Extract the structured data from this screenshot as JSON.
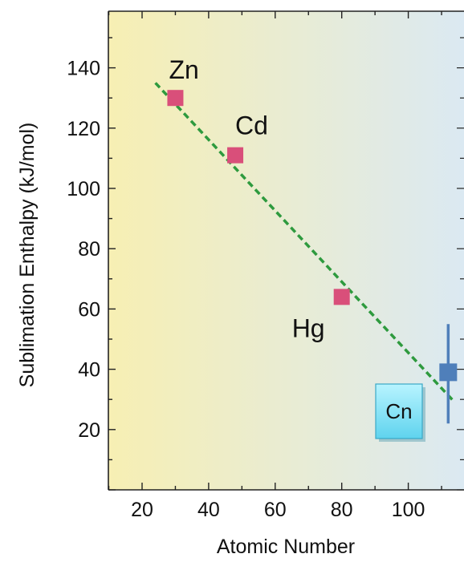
{
  "chart_data": {
    "type": "scatter",
    "xlabel": "Atomic Number",
    "ylabel": "Sublimation Enthalpy (kJ/mol)",
    "xlim": [
      10,
      114
    ],
    "ylim": [
      0,
      160
    ],
    "xticks": [
      20,
      40,
      60,
      80,
      100
    ],
    "yticks": [
      20,
      40,
      60,
      80,
      100,
      120,
      140
    ],
    "grid": false,
    "background": "horizontal gradient yellow to light blue",
    "colors": {
      "point": "#d94f7a",
      "cn_point": "#4f7fba",
      "trend": "#2e9a3e",
      "gradient_left": "#f7efb3",
      "gradient_right": "#dbe9f2",
      "cn_box": "#7fe3f5"
    },
    "points": [
      {
        "label": "Zn",
        "x": 30,
        "y": 130
      },
      {
        "label": "Cd",
        "x": 48,
        "y": 111
      },
      {
        "label": "Hg",
        "x": 80,
        "y": 64
      }
    ],
    "cn_point": {
      "label": "Cn",
      "x": 112,
      "y": 39,
      "y_err_low": 22,
      "y_err_high": 55
    },
    "trendline": {
      "x1": 24,
      "y1": 135,
      "x2": 114,
      "y2": 29,
      "style": "dashed"
    }
  }
}
